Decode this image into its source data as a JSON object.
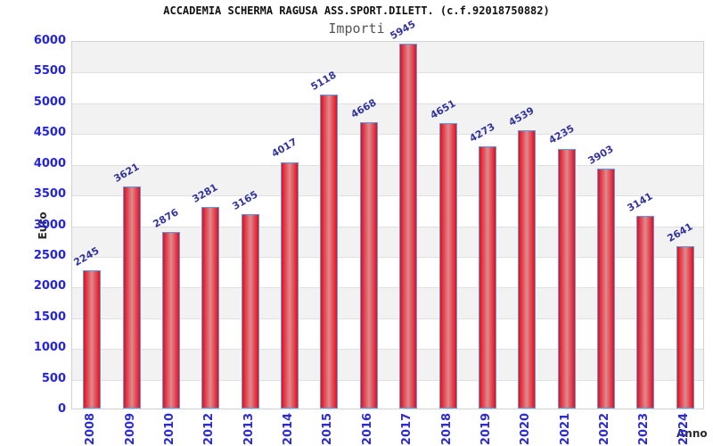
{
  "header": {
    "title": "ACCADEMIA SCHERMA RAGUSA ASS.SPORT.DILETT. (c.f.92018750882)",
    "subtitle": "Importi"
  },
  "chart_data": {
    "type": "bar",
    "title": "ACCADEMIA SCHERMA RAGUSA ASS.SPORT.DILETT. (c.f.92018750882)",
    "subtitle": "Importi",
    "xlabel": "Anno",
    "ylabel": "Euro",
    "categories": [
      "2008",
      "2009",
      "2010",
      "2012",
      "2013",
      "2014",
      "2015",
      "2016",
      "2017",
      "2018",
      "2019",
      "2020",
      "2021",
      "2022",
      "2023",
      "2024"
    ],
    "values": [
      2245,
      3621,
      2876,
      3281,
      3165,
      4017,
      5118,
      4668,
      5945,
      4651,
      4273,
      4539,
      4235,
      3903,
      3141,
      2641
    ],
    "ylim": [
      0,
      6000
    ],
    "ytick_step": 500,
    "grid": "horizontal-bands-alternating",
    "legend": "none",
    "colors": {
      "bar_edge_red": "#e60c1e",
      "bar_center_red": "#dd8a8e",
      "bar_border_blue": "#55a0e6",
      "tick_label_blue": "#2323e0",
      "value_label_blue": "#34349c",
      "band_gray": "#f2f2f2",
      "grid_line": "#e0e0e0",
      "axis_text": "#2b2b2b",
      "subtitle_gray": "#555555"
    }
  }
}
